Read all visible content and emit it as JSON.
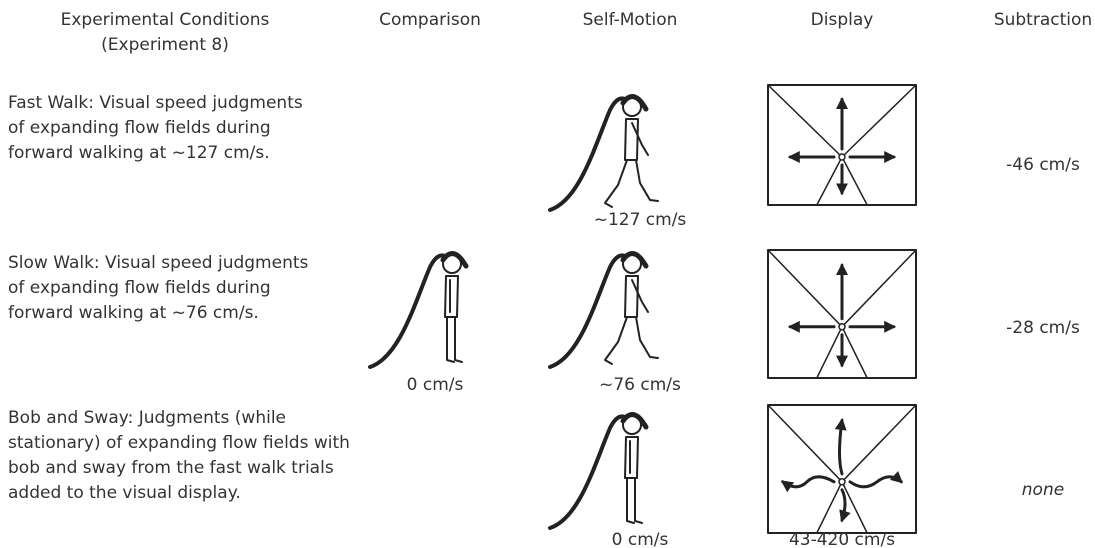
{
  "headers": [
    "Experimental Conditions",
    "(Experiment 8)",
    "Comparison",
    "Self-Motion",
    "Display",
    "Subtraction"
  ],
  "rows": [
    {
      "description": [
        "Fast Walk: Visual speed judgments",
        "of expanding flow fields during",
        "forward walking at ~127 cm/s."
      ],
      "self_motion_label": "~127 cm/s",
      "subtraction": "-46 cm/s"
    },
    {
      "description": [
        "Slow Walk: Visual speed judgments",
        "of expanding flow fields during",
        "forward walking at ~76 cm/s."
      ],
      "comparison_label": "0 cm/s",
      "self_motion_label": "~76 cm/s",
      "subtraction": "-28 cm/s"
    },
    {
      "description": [
        "Bob and Sway: Judgments (while",
        "stationary) of expanding flow fields with",
        "bob and sway from the fast walk trials",
        "added to the visual display."
      ],
      "self_motion_label": "0 cm/s",
      "display_label": "43-420 cm/s",
      "subtraction": "none"
    }
  ]
}
